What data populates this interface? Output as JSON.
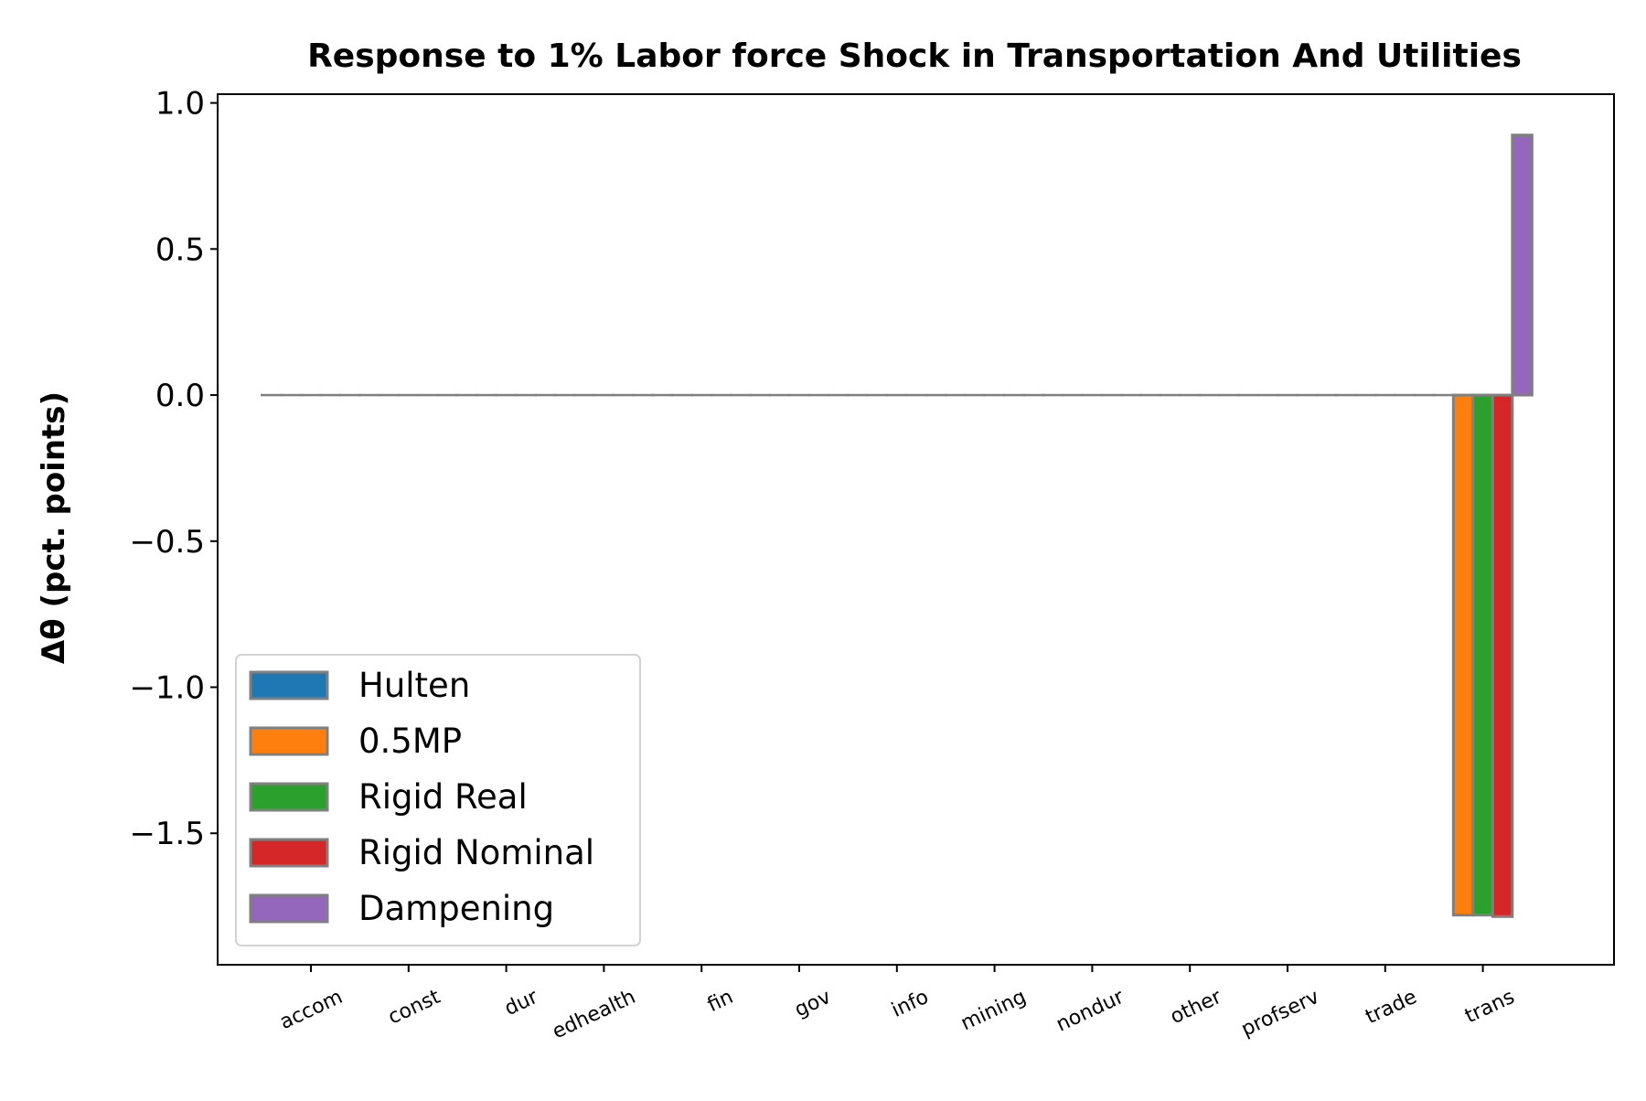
{
  "chart_data": {
    "type": "bar",
    "title": "Response to 1% Labor force Shock in Transportation And Utilities",
    "xlabel": "",
    "ylabel": "Δθ  (pct. points)",
    "categories": [
      "accom",
      "const",
      "dur",
      "edhealth",
      "fin",
      "gov",
      "info",
      "mining",
      "nondur",
      "other",
      "profserv",
      "trade",
      "trans"
    ],
    "ylim": [
      -1.95,
      1.03
    ],
    "yticks": [
      -1.5,
      -1.0,
      -0.5,
      0.0,
      0.5,
      1.0
    ],
    "ytick_labels": [
      "−1.5",
      "−1.0",
      "−0.5",
      "0.0",
      "0.5",
      "1.0"
    ],
    "grid": false,
    "legend_position": "lower-left",
    "series": [
      {
        "name": "Hulten",
        "color": "#1f77b4",
        "values": [
          0,
          0,
          0,
          0,
          0,
          0,
          0,
          0,
          0,
          0,
          0,
          0,
          0
        ]
      },
      {
        "name": "0.5MP",
        "color": "#ff7f0e",
        "values": [
          0,
          0,
          0,
          0,
          0,
          0,
          0,
          0,
          0,
          0,
          0,
          0,
          -1.78
        ]
      },
      {
        "name": "Rigid Real",
        "color": "#2ca02c",
        "values": [
          0,
          0,
          0,
          0,
          0,
          0,
          0,
          0,
          0,
          0,
          0,
          0,
          -1.78
        ]
      },
      {
        "name": "Rigid Nominal",
        "color": "#d62728",
        "values": [
          0,
          0,
          0,
          0,
          0,
          0,
          0,
          0,
          0,
          0,
          0,
          0,
          -1.785
        ]
      },
      {
        "name": "Dampening",
        "color": "#9467bd",
        "values": [
          0,
          0,
          0,
          0,
          0,
          0,
          0,
          0,
          0,
          0,
          0,
          0,
          0.89
        ]
      }
    ]
  }
}
